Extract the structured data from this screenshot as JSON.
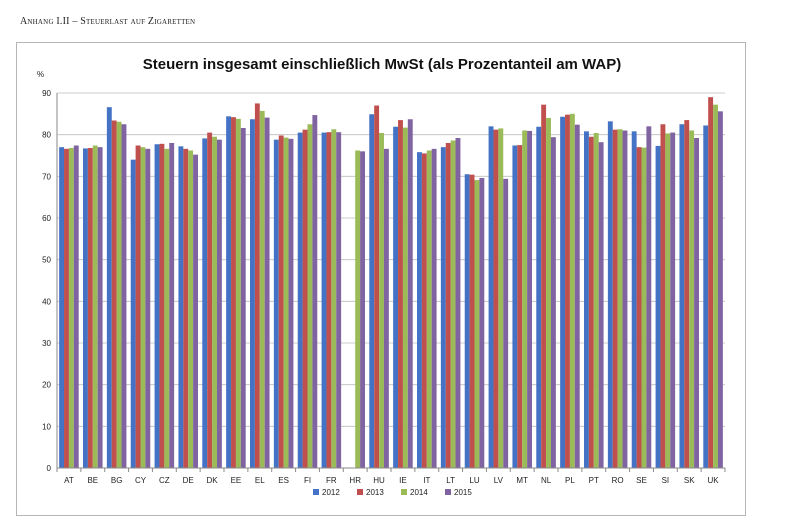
{
  "page": {
    "heading": "Anhang I.II – Steuerlast auf Zigaretten"
  },
  "chart_data": {
    "type": "bar",
    "title": "Steuern insgesamt einschließlich MwSt (als Prozentanteil am WAP)",
    "ylabel": "%",
    "xlabel": "",
    "ylim": [
      0,
      90
    ],
    "yticks": [
      0,
      10,
      20,
      30,
      40,
      50,
      60,
      70,
      80,
      90
    ],
    "grid": true,
    "legend_position": "bottom",
    "categories": [
      "AT",
      "BE",
      "BG",
      "CY",
      "CZ",
      "DE",
      "DK",
      "EE",
      "EL",
      "ES",
      "FI",
      "FR",
      "HR",
      "HU",
      "IE",
      "IT",
      "LT",
      "LU",
      "LV",
      "MT",
      "NL",
      "PL",
      "PT",
      "RO",
      "SE",
      "SI",
      "SK",
      "UK"
    ],
    "series": [
      {
        "name": "2012",
        "color": "#4472c4",
        "values": [
          77.0,
          76.7,
          86.6,
          74.0,
          77.7,
          77.2,
          79.1,
          84.4,
          83.7,
          78.8,
          80.5,
          80.5,
          null,
          84.9,
          81.9,
          75.8,
          77.0,
          70.5,
          82.0,
          77.4,
          81.9,
          84.3,
          80.8,
          83.2,
          80.8,
          77.3,
          82.5,
          82.2
        ]
      },
      {
        "name": "2013",
        "color": "#c0504d",
        "values": [
          76.6,
          76.8,
          83.4,
          77.4,
          77.8,
          76.6,
          80.5,
          84.2,
          87.5,
          79.8,
          81.2,
          80.6,
          null,
          87.0,
          83.5,
          75.5,
          78.0,
          70.4,
          81.2,
          77.5,
          87.2,
          84.8,
          79.5,
          81.2,
          77.0,
          82.5,
          83.5,
          89.0
        ]
      },
      {
        "name": "2014",
        "color": "#9bbb59",
        "values": [
          76.8,
          77.4,
          83.1,
          77.0,
          76.6,
          76.2,
          79.5,
          83.8,
          85.7,
          79.3,
          82.5,
          81.3,
          76.2,
          80.4,
          81.7,
          76.2,
          78.6,
          69.1,
          81.5,
          81.0,
          84.0,
          85.0,
          80.4,
          81.3,
          76.9,
          80.3,
          81.0,
          87.2
        ]
      },
      {
        "name": "2015",
        "color": "#8064a2",
        "values": [
          77.4,
          77.0,
          82.5,
          76.6,
          78.0,
          75.2,
          78.8,
          81.6,
          84.1,
          79.0,
          84.7,
          80.6,
          76.0,
          76.6,
          83.7,
          76.6,
          79.2,
          69.6,
          69.4,
          80.9,
          79.4,
          82.4,
          78.2,
          81.0,
          82.0,
          80.5,
          79.2,
          85.6
        ]
      }
    ]
  }
}
